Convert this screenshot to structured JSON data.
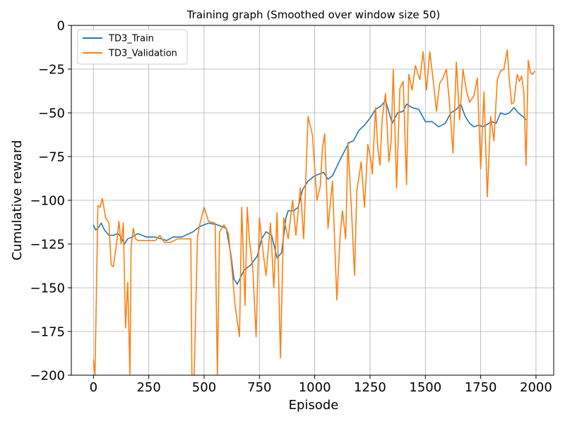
{
  "chart_data": {
    "type": "line",
    "title": "Training graph (Smoothed over window size 50)",
    "xlabel": "Episode",
    "ylabel": "Cumulative reward",
    "xlim": [
      -100,
      2080
    ],
    "ylim": [
      -200,
      0
    ],
    "xticks": [
      0,
      250,
      500,
      750,
      1000,
      1250,
      1500,
      1750,
      2000
    ],
    "yticks": [
      0,
      -25,
      -50,
      -75,
      -100,
      -125,
      -150,
      -175,
      -200
    ],
    "grid": true,
    "legend_position": "top-left",
    "series": [
      {
        "name": "TD3_Train",
        "color": "#1f77b4",
        "points": [
          [
            0,
            -114
          ],
          [
            10,
            -117
          ],
          [
            20,
            -116
          ],
          [
            35,
            -113
          ],
          [
            50,
            -117
          ],
          [
            70,
            -120
          ],
          [
            90,
            -120
          ],
          [
            110,
            -119
          ],
          [
            125,
            -121
          ],
          [
            140,
            -125
          ],
          [
            155,
            -122
          ],
          [
            175,
            -121
          ],
          [
            200,
            -119
          ],
          [
            240,
            -121
          ],
          [
            280,
            -121
          ],
          [
            330,
            -123
          ],
          [
            360,
            -121
          ],
          [
            400,
            -121
          ],
          [
            450,
            -118
          ],
          [
            480,
            -115
          ],
          [
            520,
            -113
          ],
          [
            560,
            -114
          ],
          [
            600,
            -116
          ],
          [
            620,
            -130
          ],
          [
            635,
            -145
          ],
          [
            650,
            -148
          ],
          [
            680,
            -140
          ],
          [
            710,
            -137
          ],
          [
            740,
            -132
          ],
          [
            760,
            -122
          ],
          [
            780,
            -118
          ],
          [
            805,
            -120
          ],
          [
            830,
            -133
          ],
          [
            850,
            -130
          ],
          [
            870,
            -110
          ],
          [
            880,
            -106
          ],
          [
            905,
            -106
          ],
          [
            925,
            -104
          ],
          [
            945,
            -94
          ],
          [
            970,
            -89
          ],
          [
            1000,
            -86
          ],
          [
            1040,
            -84
          ],
          [
            1060,
            -88
          ],
          [
            1080,
            -86
          ],
          [
            1110,
            -78
          ],
          [
            1130,
            -73
          ],
          [
            1155,
            -67
          ],
          [
            1175,
            -66
          ],
          [
            1200,
            -60
          ],
          [
            1225,
            -57
          ],
          [
            1250,
            -53
          ],
          [
            1275,
            -48
          ],
          [
            1300,
            -46
          ],
          [
            1320,
            -43
          ],
          [
            1350,
            -56
          ],
          [
            1375,
            -50
          ],
          [
            1400,
            -49
          ],
          [
            1415,
            -45
          ],
          [
            1440,
            -47
          ],
          [
            1470,
            -48
          ],
          [
            1500,
            -55
          ],
          [
            1530,
            -55
          ],
          [
            1560,
            -58
          ],
          [
            1590,
            -56
          ],
          [
            1615,
            -50
          ],
          [
            1640,
            -48
          ],
          [
            1660,
            -45
          ],
          [
            1680,
            -52
          ],
          [
            1700,
            -56
          ],
          [
            1720,
            -58
          ],
          [
            1740,
            -57
          ],
          [
            1760,
            -58
          ],
          [
            1800,
            -55
          ],
          [
            1820,
            -56
          ],
          [
            1840,
            -50
          ],
          [
            1860,
            -51
          ],
          [
            1880,
            -50
          ],
          [
            1900,
            -47
          ],
          [
            1920,
            -50
          ],
          [
            1940,
            -52
          ],
          [
            1955,
            -54
          ]
        ]
      },
      {
        "name": "TD3_Validation",
        "color": "#ff7f0e",
        "points": [
          [
            0,
            -191
          ],
          [
            7,
            -200
          ],
          [
            20,
            -103
          ],
          [
            30,
            -104
          ],
          [
            40,
            -99
          ],
          [
            55,
            -110
          ],
          [
            70,
            -113
          ],
          [
            80,
            -137
          ],
          [
            90,
            -138
          ],
          [
            105,
            -124
          ],
          [
            115,
            -112
          ],
          [
            125,
            -125
          ],
          [
            135,
            -113
          ],
          [
            145,
            -173
          ],
          [
            155,
            -147
          ],
          [
            165,
            -200
          ],
          [
            170,
            -127
          ],
          [
            180,
            -116
          ],
          [
            190,
            -122
          ],
          [
            200,
            -123
          ],
          [
            240,
            -123
          ],
          [
            280,
            -123
          ],
          [
            300,
            -120
          ],
          [
            320,
            -124
          ],
          [
            350,
            -124
          ],
          [
            380,
            -122
          ],
          [
            420,
            -122
          ],
          [
            440,
            -122
          ],
          [
            445,
            -200
          ],
          [
            455,
            -200
          ],
          [
            470,
            -121
          ],
          [
            480,
            -114
          ],
          [
            500,
            -104
          ],
          [
            520,
            -112
          ],
          [
            550,
            -113
          ],
          [
            560,
            -200
          ],
          [
            570,
            -118
          ],
          [
            590,
            -114
          ],
          [
            610,
            -119
          ],
          [
            625,
            -138
          ],
          [
            640,
            -160
          ],
          [
            660,
            -178
          ],
          [
            670,
            -104
          ],
          [
            685,
            -160
          ],
          [
            695,
            -104
          ],
          [
            705,
            -123
          ],
          [
            720,
            -139
          ],
          [
            735,
            -178
          ],
          [
            750,
            -110
          ],
          [
            765,
            -128
          ],
          [
            780,
            -143
          ],
          [
            800,
            -113
          ],
          [
            815,
            -150
          ],
          [
            830,
            -107
          ],
          [
            845,
            -190
          ],
          [
            860,
            -110
          ],
          [
            880,
            -122
          ],
          [
            900,
            -100
          ],
          [
            915,
            -120
          ],
          [
            935,
            -93
          ],
          [
            950,
            -122
          ],
          [
            970,
            -52
          ],
          [
            990,
            -63
          ],
          [
            1010,
            -100
          ],
          [
            1025,
            -92
          ],
          [
            1035,
            -70
          ],
          [
            1045,
            -62
          ],
          [
            1060,
            -116
          ],
          [
            1080,
            -89
          ],
          [
            1100,
            -157
          ],
          [
            1115,
            -120
          ],
          [
            1125,
            -106
          ],
          [
            1140,
            -122
          ],
          [
            1150,
            -67
          ],
          [
            1165,
            -103
          ],
          [
            1180,
            -143
          ],
          [
            1190,
            -95
          ],
          [
            1210,
            -78
          ],
          [
            1225,
            -104
          ],
          [
            1240,
            -68
          ],
          [
            1255,
            -78
          ],
          [
            1260,
            -85
          ],
          [
            1275,
            -47
          ],
          [
            1285,
            -70
          ],
          [
            1295,
            -80
          ],
          [
            1305,
            -53
          ],
          [
            1320,
            -39
          ],
          [
            1335,
            -78
          ],
          [
            1345,
            -67
          ],
          [
            1355,
            -25
          ],
          [
            1370,
            -93
          ],
          [
            1385,
            -36
          ],
          [
            1400,
            -32
          ],
          [
            1415,
            -91
          ],
          [
            1425,
            -28
          ],
          [
            1440,
            -37
          ],
          [
            1455,
            -23
          ],
          [
            1475,
            -31
          ],
          [
            1490,
            -15
          ],
          [
            1505,
            -37
          ],
          [
            1520,
            -15
          ],
          [
            1535,
            -31
          ],
          [
            1550,
            -49
          ],
          [
            1565,
            -33
          ],
          [
            1580,
            -30
          ],
          [
            1595,
            -25
          ],
          [
            1610,
            -46
          ],
          [
            1625,
            -73
          ],
          [
            1640,
            -21
          ],
          [
            1655,
            -54
          ],
          [
            1670,
            -25
          ],
          [
            1685,
            -37
          ],
          [
            1700,
            -44
          ],
          [
            1720,
            -40
          ],
          [
            1735,
            -30
          ],
          [
            1750,
            -82
          ],
          [
            1765,
            -38
          ],
          [
            1780,
            -98
          ],
          [
            1795,
            -52
          ],
          [
            1810,
            -66
          ],
          [
            1825,
            -31
          ],
          [
            1840,
            -26
          ],
          [
            1855,
            -25
          ],
          [
            1870,
            -14
          ],
          [
            1880,
            -32
          ],
          [
            1890,
            -45
          ],
          [
            1900,
            -44
          ],
          [
            1915,
            -28
          ],
          [
            1925,
            -32
          ],
          [
            1935,
            -29
          ],
          [
            1945,
            -38
          ],
          [
            1955,
            -80
          ],
          [
            1965,
            -20
          ],
          [
            1975,
            -27
          ],
          [
            1985,
            -28
          ],
          [
            1995,
            -26
          ]
        ]
      }
    ]
  }
}
